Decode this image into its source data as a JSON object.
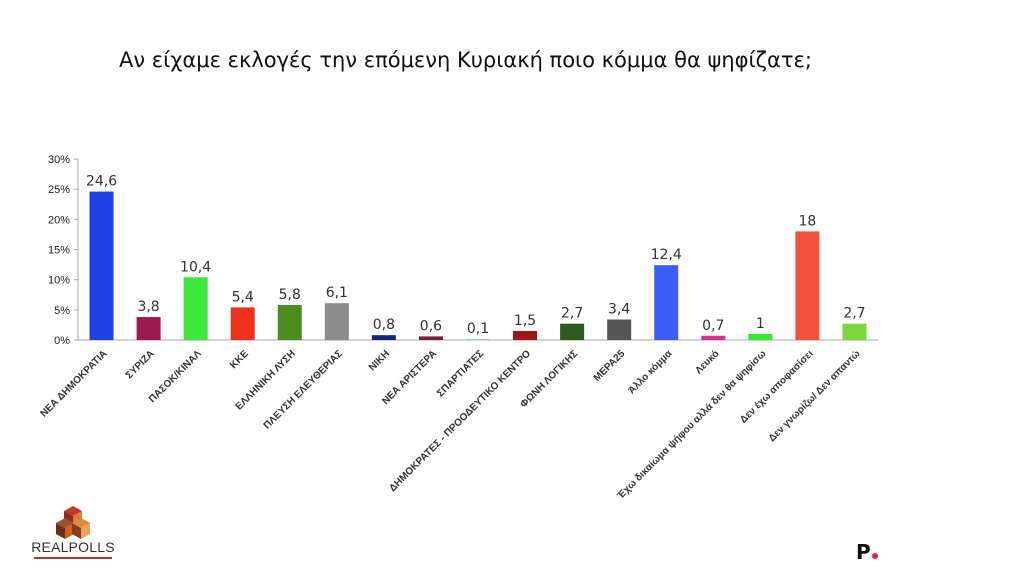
{
  "title": "Αν είχαμε εκλογές την επόμενη Κυριακή ποιο κόμμα θα ψηφίζατε;",
  "logo": {
    "text": "REALPOLLS",
    "icon": "realpolls-cube-logo"
  },
  "brand": {
    "text": "P",
    "dot_color": "#e3262f"
  },
  "chart_data": {
    "type": "bar",
    "title": "Αν είχαμε εκλογές την επόμενη Κυριακή ποιο κόμμα θα ψηφίζατε;",
    "xlabel": "",
    "ylabel": "",
    "ylim": [
      0,
      30
    ],
    "yticks": [
      "0%",
      "5%",
      "10%",
      "15%",
      "20%",
      "25%",
      "30%"
    ],
    "grid": false,
    "categories": [
      "ΝΕΑ ΔΗΜΟΚΡΑΤΙΑ",
      "ΣΥΡΙΖΑ",
      "ΠΑΣΟΚ/ΚΙΝΑΛ",
      "ΚΚΕ",
      "ΕΛΛΗΝΙΚΗ ΛΥΣΗ",
      "ΠΛΕΥΣΗ ΕΛΕΥΘΕΡΙΑΣ",
      "ΝΙΚΗ",
      "ΝΕΑ ΑΡΙΣΤΕΡΑ",
      "ΣΠΑΡΤΙΑΤΕΣ",
      "ΔΗΜΟΚΡΑΤΕΣ - ΠΡΟΟΔΕΥΤΙΚΟ ΚΕΝΤΡΟ",
      "ΦΩΝΗ ΛΟΓΙΚΗΣ",
      "ΜΕΡΑ25",
      "Άλλο κόμμα",
      "Λευκό",
      "Έχω δικαίωμα ψήφου αλλά δεν θα ψηφίσω",
      "Δεν έχω αποφασίσει",
      "Δεν γνωρίζω/ Δεν απαντώ"
    ],
    "values": [
      24.6,
      3.8,
      10.4,
      5.4,
      5.8,
      6.1,
      0.8,
      0.6,
      0.1,
      1.5,
      2.7,
      3.4,
      12.4,
      0.7,
      1,
      18,
      2.7
    ],
    "data_labels": [
      "24,6",
      "3,8",
      "10,4",
      "5,4",
      "5,8",
      "6,1",
      "0,8",
      "0,6",
      "0,1",
      "1,5",
      "2,7",
      "3,4",
      "12,4",
      "0,7",
      "1",
      "18",
      "2,7"
    ],
    "colors": [
      "#1f3fe6",
      "#9b1b4f",
      "#3ee83a",
      "#f0301e",
      "#4a8f1d",
      "#8c8c8c",
      "#13247a",
      "#7a1c3a",
      "#7fc97f",
      "#a01616",
      "#305b1f",
      "#555555",
      "#3b5cf5",
      "#d4318e",
      "#33e833",
      "#f4523a",
      "#7ad83a"
    ]
  }
}
